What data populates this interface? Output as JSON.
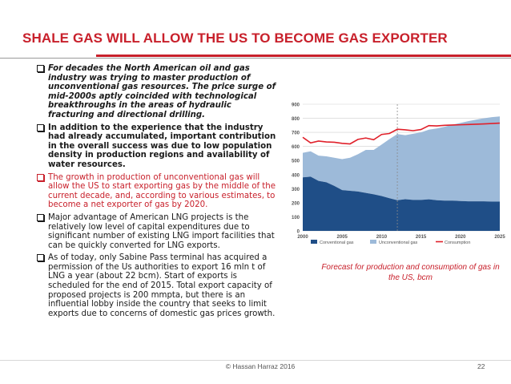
{
  "slide": {
    "title": "SHALE GAS WILL ALLOW THE US TO BECOME GAS EXPORTER",
    "bullets": [
      {
        "text": "For decades the North American oil and gas industry was trying to master production of unconventional gas resources. The price surge of mid-2000s aptly coincided with technological breakthroughs in the areas of hydraulic fracturing and directional drilling.",
        "style": "italic"
      },
      {
        "text": "In addition to the experience that the industry had already accumulated, important contribution in the overall success was due to low population density in production regions and availability of water resources.",
        "style": "bold"
      },
      {
        "text": "The growth in production of unconventional gas will allow the US to start exporting gas by the middle of the current decade, and, according to various estimates, to become a net exporter of gas by 2020.",
        "style": "red"
      },
      {
        "text": "Major advantage of American LNG projects is the relatively low level of capital expenditures due to significant number of existing LNG import facilities that can be quickly converted for LNG exports.",
        "style": "normal"
      },
      {
        "text": "As of today, only Sabine Pass terminal has acquired a permission of the Us authorities to export 16 mln t of LNG a year (about 22 bcm). Start of exports is scheduled for the end of 2015. Total export capacity of proposed projects is 200 mmpta, but there is an influential lobby inside the country that seeks to limit exports due to concerns of domestic gas prices growth.",
        "style": "normal"
      }
    ],
    "chart_caption": "Forecast for production and consumption of gas in the US, bcm",
    "footer": "© Hassan Harraz 2016",
    "page_number": "22"
  },
  "colors": {
    "accent_red": "#c8202b",
    "conventional": "#1f4e87",
    "unconventional": "#9dbad9",
    "consumption": "#e0202a"
  },
  "chart_data": {
    "type": "area",
    "title": "",
    "xlabel": "",
    "ylabel": "",
    "x": [
      2000,
      2001,
      2002,
      2003,
      2004,
      2005,
      2006,
      2007,
      2008,
      2009,
      2010,
      2011,
      2012,
      2013,
      2014,
      2015,
      2016,
      2017,
      2018,
      2019,
      2020,
      2021,
      2022,
      2023,
      2024,
      2025
    ],
    "xlim": [
      2000,
      2025
    ],
    "ylim": [
      0,
      900
    ],
    "xticks": [
      "2000",
      "2005",
      "2010",
      "2015",
      "2020",
      "2025"
    ],
    "yticks": [
      "0",
      "100",
      "200",
      "300",
      "400",
      "500",
      "600",
      "700",
      "800",
      "900"
    ],
    "forecast_start": 2012,
    "grid": true,
    "series": [
      {
        "name": "Conventional gas",
        "kind": "stacked-area",
        "values": [
          380,
          385,
          355,
          345,
          320,
          290,
          285,
          280,
          270,
          260,
          248,
          232,
          218,
          225,
          220,
          220,
          224,
          218,
          215,
          215,
          212,
          210,
          210,
          210,
          208,
          208
        ]
      },
      {
        "name": "Unconventional gas",
        "kind": "stacked-area",
        "values": [
          175,
          180,
          180,
          185,
          200,
          220,
          235,
          265,
          305,
          315,
          365,
          420,
          470,
          455,
          470,
          480,
          495,
          510,
          525,
          540,
          555,
          570,
          580,
          590,
          600,
          605
        ]
      },
      {
        "name": "Consumption",
        "kind": "line",
        "values": [
          665,
          625,
          638,
          632,
          630,
          622,
          618,
          650,
          660,
          648,
          685,
          692,
          722,
          718,
          712,
          720,
          748,
          746,
          750,
          752,
          754,
          756,
          758,
          760,
          763,
          766
        ]
      }
    ],
    "legend_position": "bottom"
  }
}
